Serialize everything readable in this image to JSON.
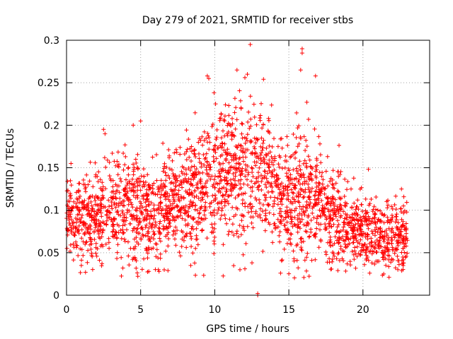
{
  "chart_data": {
    "type": "scatter",
    "title": "Day 279 of 2021, SRMTID for receiver stbs",
    "xlabel": "GPS time / hours",
    "ylabel": "SRMTID / TECUs",
    "xlim": [
      0,
      24.5
    ],
    "ylim": [
      0,
      0.3
    ],
    "xticks": [
      0,
      5,
      10,
      15,
      20
    ],
    "xtick_labels": [
      "0",
      "5",
      "10",
      "15",
      "20"
    ],
    "yticks": [
      0,
      0.05,
      0.1,
      0.15,
      0.2,
      0.25,
      0.3
    ],
    "ytick_labels": [
      "0",
      "0.05",
      "0.1",
      "0.15",
      "0.2",
      "0.25",
      "0.3"
    ],
    "grid": true,
    "marker": "plus",
    "color": "#ff0000",
    "x_coverage": [
      0,
      23
    ],
    "profile_hours": [
      0,
      1,
      2,
      3,
      4,
      5,
      6,
      7,
      8,
      9,
      10,
      11,
      12,
      13,
      14,
      15,
      16,
      17,
      18,
      19,
      20,
      21,
      22,
      23
    ],
    "profile_median": [
      0.085,
      0.09,
      0.095,
      0.1,
      0.105,
      0.1,
      0.095,
      0.105,
      0.115,
      0.125,
      0.14,
      0.145,
      0.14,
      0.145,
      0.125,
      0.105,
      0.12,
      0.11,
      0.09,
      0.08,
      0.075,
      0.07,
      0.068,
      0.065
    ],
    "profile_spread": [
      0.025,
      0.03,
      0.035,
      0.04,
      0.04,
      0.045,
      0.04,
      0.04,
      0.04,
      0.05,
      0.05,
      0.055,
      0.06,
      0.05,
      0.045,
      0.05,
      0.06,
      0.045,
      0.035,
      0.03,
      0.028,
      0.028,
      0.028,
      0.025
    ],
    "point_count": 2600,
    "highlights": [
      {
        "x": 12.4,
        "y": 0.295
      },
      {
        "x": 15.9,
        "y": 0.29
      },
      {
        "x": 15.9,
        "y": 0.285
      },
      {
        "x": 9.5,
        "y": 0.258
      },
      {
        "x": 9.6,
        "y": 0.255
      },
      {
        "x": 11.5,
        "y": 0.265
      },
      {
        "x": 12.2,
        "y": 0.26
      },
      {
        "x": 16.8,
        "y": 0.258
      },
      {
        "x": 15.8,
        "y": 0.265
      },
      {
        "x": 2.5,
        "y": 0.195
      },
      {
        "x": 2.6,
        "y": 0.19
      },
      {
        "x": 5.0,
        "y": 0.205
      },
      {
        "x": 4.5,
        "y": 0.2
      },
      {
        "x": 12.9,
        "y": 0.0
      },
      {
        "x": 12.9,
        "y": 0.002
      },
      {
        "x": 0.3,
        "y": 0.155
      },
      {
        "x": 19.2,
        "y": 0.125
      },
      {
        "x": 22.6,
        "y": 0.125
      },
      {
        "x": 1.0,
        "y": 0.035
      },
      {
        "x": 3.8,
        "y": 0.032
      },
      {
        "x": 6.2,
        "y": 0.03
      },
      {
        "x": 21.4,
        "y": 0.025
      }
    ]
  }
}
